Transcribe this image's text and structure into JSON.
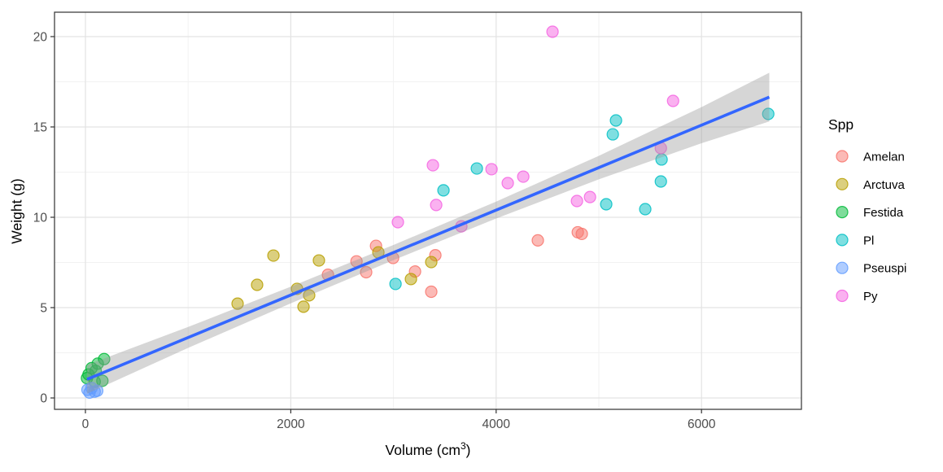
{
  "chart_data": {
    "type": "scatter",
    "xlabel": {
      "text": "Volume (cm",
      "sup": "3",
      "end": ")"
    },
    "ylabel": "Weight (g)",
    "x_ticks": [
      0,
      2000,
      4000,
      6000
    ],
    "y_ticks": [
      0,
      5,
      10,
      15,
      20
    ],
    "x_minor": [
      1000,
      3000,
      5000
    ],
    "y_minor": [
      2.5,
      7.5,
      12.5,
      17.5
    ],
    "xlim": [
      -301,
      6973
    ],
    "ylim": [
      -0.63,
      21.35
    ],
    "grid": true,
    "legend_position": "right",
    "legend_title": "Spp",
    "series": [
      {
        "name": "Amelan",
        "color": "#F8766D",
        "points": [
          [
            2362,
            6.82
          ],
          [
            2640,
            7.56
          ],
          [
            2734,
            6.96
          ],
          [
            2830,
            8.42
          ],
          [
            2996,
            7.75
          ],
          [
            3210,
            7.0
          ],
          [
            3408,
            7.9
          ],
          [
            3368,
            5.88
          ],
          [
            4406,
            8.72
          ],
          [
            4795,
            9.17
          ],
          [
            4834,
            9.08
          ]
        ]
      },
      {
        "name": "Arctuva",
        "color": "#B79F00",
        "points": [
          [
            1482,
            5.22
          ],
          [
            1672,
            6.26
          ],
          [
            1831,
            7.88
          ],
          [
            2061,
            6.04
          ],
          [
            2179,
            5.68
          ],
          [
            2124,
            5.05
          ],
          [
            2274,
            7.61
          ],
          [
            2853,
            8.06
          ],
          [
            3170,
            6.58
          ],
          [
            3368,
            7.52
          ]
        ]
      },
      {
        "name": "Festida",
        "color": "#00BA38",
        "points": [
          [
            15,
            1.1
          ],
          [
            30,
            1.3
          ],
          [
            60,
            1.65
          ],
          [
            90,
            0.9
          ],
          [
            100,
            1.5
          ],
          [
            120,
            1.9
          ],
          [
            165,
            0.95
          ],
          [
            182,
            2.15
          ]
        ]
      },
      {
        "name": "Pl",
        "color": "#00BFC4",
        "points": [
          [
            3020,
            6.31
          ],
          [
            3487,
            11.49
          ],
          [
            3812,
            12.7
          ],
          [
            5072,
            10.72
          ],
          [
            5452,
            10.45
          ],
          [
            5136,
            14.59
          ],
          [
            5167,
            15.36
          ],
          [
            5604,
            11.98
          ],
          [
            5611,
            13.2
          ],
          [
            6650,
            15.72
          ]
        ]
      },
      {
        "name": "Pseuspi",
        "color": "#619CFF",
        "points": [
          [
            20,
            0.45
          ],
          [
            40,
            0.3
          ],
          [
            60,
            0.55
          ],
          [
            90,
            0.35
          ],
          [
            115,
            0.4
          ]
        ]
      },
      {
        "name": "Py",
        "color": "#F564E2",
        "points": [
          [
            3043,
            9.73
          ],
          [
            3384,
            12.88
          ],
          [
            3416,
            10.68
          ],
          [
            3661,
            9.5
          ],
          [
            3955,
            12.66
          ],
          [
            4113,
            11.89
          ],
          [
            4264,
            12.25
          ],
          [
            4549,
            20.27
          ],
          [
            4787,
            10.9
          ],
          [
            4914,
            11.12
          ],
          [
            5604,
            13.83
          ],
          [
            5723,
            16.44
          ]
        ]
      }
    ],
    "regression": {
      "type": "linear",
      "color": "#3366FF",
      "x0": 15,
      "y0": 1.03,
      "x1": 6660,
      "y1": 16.65,
      "ci_color": "#999999",
      "ci_opacity": 0.4,
      "ci_band": [
        [
          15,
          1.83,
          0.23
        ],
        [
          1000,
          3.93,
          2.77
        ],
        [
          2000,
          6.16,
          5.24
        ],
        [
          3000,
          8.47,
          7.63
        ],
        [
          4000,
          10.87,
          9.93
        ],
        [
          5000,
          13.4,
          12.1
        ],
        [
          6000,
          16.1,
          14.1
        ],
        [
          6660,
          18.0,
          15.3
        ]
      ]
    }
  }
}
